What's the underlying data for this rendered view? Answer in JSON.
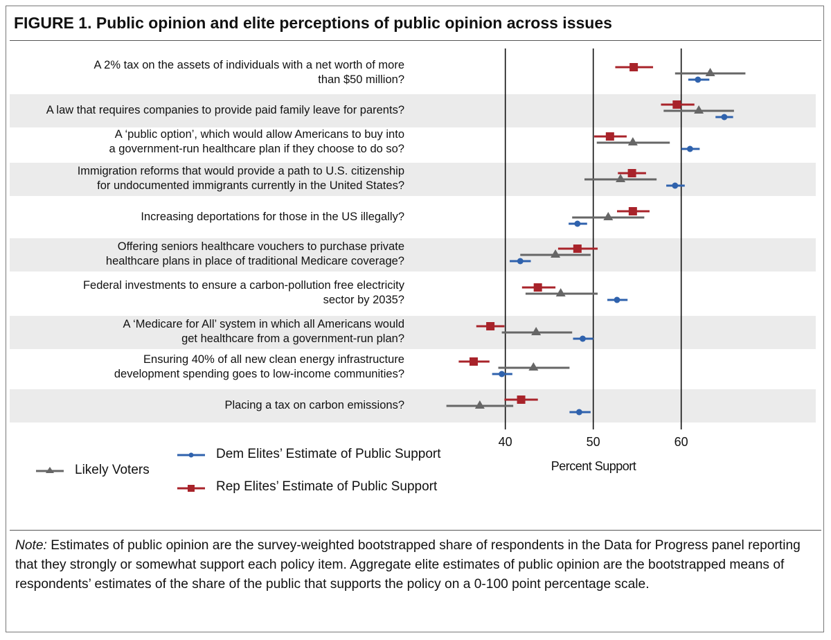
{
  "figure": {
    "title": "FIGURE 1. Public opinion and elite perceptions of public opinion across issues",
    "note_label": "Note:",
    "note_text": " Estimates of public opinion are the survey-weighted bootstrapped share of respondents in the Data for Progress panel reporting that they strongly or somewhat support each policy item. Aggregate elite estimates of public opinion are the bootstrapped means of respondents’ estimates of the share of the public that supports the policy on a 0-100 point percentage scale."
  },
  "chart_data": {
    "type": "scatter",
    "subtype": "dot-plot with confidence intervals",
    "xlabel": "Percent Support",
    "xticks": [
      40,
      50,
      60
    ],
    "xlim": [
      29.7,
      70.5
    ],
    "gridlines": "vertical at ticks",
    "legend_placement": "bottom-left",
    "categories": [
      "A 2% tax on the assets of individuals with a net worth of more\nthan $50 million?",
      "A law that requires companies to provide paid family leave for parents?",
      "A ‘public option’, which would allow Americans to buy into\na government-run healthcare plan if they choose to do so?",
      "Immigration reforms that would provide a path to U.S. citizenship\nfor undocumented immigrants currently in the United States?",
      "Increasing deportations for those in the US illegally?",
      "Offering seniors healthcare vouchers to purchase private\nhealthcare plans in place of traditional Medicare coverage?",
      "Federal investments to ensure a carbon-pollution free electricity\nsector by 2035?",
      "A ‘Medicare for All’ system in which all Americans would\nget healthcare from a government-run plan?",
      "Ensuring 40% of all new clean energy infrastructure\ndevelopment spending goes to low-income communities?",
      "Placing a tax on carbon emissions?"
    ],
    "series": [
      {
        "name": "Rep Elites’ Estimate of Public Support",
        "color": "#a8232a",
        "marker": "square",
        "values": [
          54.6,
          59.5,
          51.9,
          54.4,
          54.5,
          48.2,
          43.7,
          38.3,
          36.4,
          41.8
        ],
        "lower": [
          52.5,
          57.7,
          50.1,
          52.8,
          52.7,
          46.0,
          41.9,
          36.7,
          34.7,
          39.9
        ],
        "upper": [
          56.8,
          61.5,
          53.8,
          56.0,
          56.4,
          50.5,
          45.7,
          39.9,
          38.2,
          43.7
        ]
      },
      {
        "name": "Likely Voters",
        "color": "#666666",
        "marker": "triangle",
        "values": [
          63.3,
          62.0,
          54.5,
          53.1,
          51.7,
          45.7,
          46.3,
          43.5,
          43.2,
          37.1
        ],
        "lower": [
          59.3,
          58.0,
          50.4,
          49.0,
          47.6,
          41.7,
          42.3,
          39.6,
          39.2,
          33.3
        ],
        "upper": [
          67.3,
          66.0,
          58.7,
          57.2,
          55.8,
          49.7,
          50.5,
          47.6,
          47.3,
          40.9
        ]
      },
      {
        "name": "Dem Elites’ Estimate of Public Support",
        "color": "#2f62ad",
        "marker": "circle",
        "values": [
          61.9,
          64.9,
          61.0,
          59.3,
          48.2,
          41.7,
          52.7,
          48.8,
          39.6,
          48.4
        ],
        "lower": [
          60.8,
          63.9,
          60.0,
          58.3,
          47.2,
          40.5,
          51.6,
          47.7,
          38.5,
          47.3
        ],
        "upper": [
          63.2,
          65.9,
          62.1,
          60.4,
          49.3,
          42.9,
          53.9,
          50.0,
          40.8,
          49.7
        ]
      }
    ]
  }
}
